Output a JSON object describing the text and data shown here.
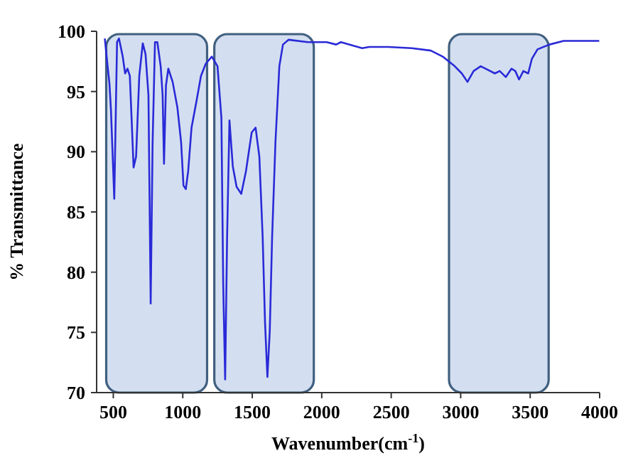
{
  "chart_data": {
    "type": "line",
    "xlabel": "Wavenumber(cm$^{-1}$)",
    "ylabel": "% Transmittance",
    "xlim": [
      380,
      4000
    ],
    "ylim": [
      70,
      100
    ],
    "xticks": [
      500,
      1000,
      1500,
      2000,
      2500,
      3000,
      3500,
      4000
    ],
    "yticks": [
      70,
      75,
      80,
      85,
      90,
      95,
      100
    ],
    "grid": false,
    "line_style": "solid",
    "marker": "none",
    "bands": [
      {
        "axis": "x",
        "from": 449,
        "to": 1175,
        "color": "#d3dff0"
      },
      {
        "axis": "x",
        "from": 1227,
        "to": 1943,
        "color": "#d3dff0"
      },
      {
        "axis": "x",
        "from": 2916,
        "to": 3633,
        "color": "#d3dff0"
      }
    ],
    "series": [
      {
        "color": "#2a2ad8",
        "x": [
          439,
          459,
          472,
          483,
          507,
          527,
          541,
          568,
          585,
          602,
          619,
          646,
          664,
          687,
          712,
          732,
          753,
          769,
          783,
          800,
          817,
          841,
          855,
          865,
          879,
          896,
          927,
          961,
          988,
          1005,
          1022,
          1039,
          1063,
          1097,
          1131,
          1165,
          1209,
          1250,
          1278,
          1291,
          1305,
          1319,
          1336,
          1360,
          1387,
          1421,
          1455,
          1496,
          1524,
          1551,
          1575,
          1592,
          1609,
          1626,
          1643,
          1667,
          1695,
          1721,
          1762,
          1899,
          2035,
          2104,
          2138,
          2291,
          2342,
          2478,
          2649,
          2785,
          2871,
          2957,
          3008,
          3049,
          3093,
          3144,
          3195,
          3246,
          3281,
          3325,
          3366,
          3393,
          3420,
          3451,
          3486,
          3512,
          3553,
          3639,
          3741,
          3997
        ],
        "values": [
          99.4,
          97.1,
          95.7,
          93.5,
          86.1,
          99.1,
          99.4,
          97.9,
          96.5,
          96.9,
          96.3,
          88.7,
          89.6,
          96.3,
          99,
          98.1,
          94.7,
          77.4,
          90.8,
          99.1,
          99.1,
          97.1,
          94.7,
          89,
          95.5,
          96.9,
          95.8,
          93.7,
          90.8,
          87.2,
          86.9,
          88.4,
          92,
          94.1,
          96.3,
          97.3,
          97.9,
          97.1,
          92.8,
          79,
          71.1,
          82.9,
          92.6,
          88.8,
          87.1,
          86.5,
          88.4,
          91.6,
          92,
          89.6,
          82.9,
          75.8,
          71.3,
          75.1,
          82.9,
          90.8,
          97.1,
          98.9,
          99.3,
          99.1,
          99.1,
          98.9,
          99.1,
          98.6,
          98.7,
          98.7,
          98.6,
          98.4,
          97.9,
          97.1,
          96.5,
          95.8,
          96.7,
          97.1,
          96.8,
          96.5,
          96.7,
          96.2,
          96.9,
          96.7,
          96,
          96.7,
          96.5,
          97.7,
          98.5,
          98.9,
          99.2,
          99.2
        ]
      }
    ]
  }
}
